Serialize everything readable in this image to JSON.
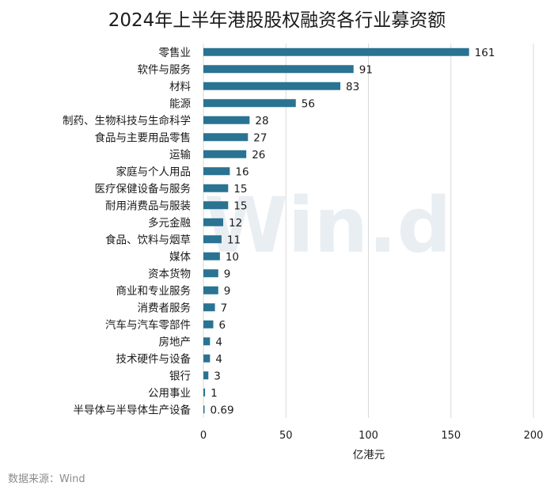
{
  "chart_data": {
    "type": "bar",
    "orientation": "horizontal",
    "title": "2024年上半年港股股权融资各行业募资额",
    "categories": [
      "零售业",
      "软件与服务",
      "材料",
      "能源",
      "制药、生物科技与生命科学",
      "食品与主要用品零售",
      "运输",
      "家庭与个人用品",
      "医疗保健设备与服务",
      "耐用消费品与服装",
      "多元金融",
      "食品、饮料与烟草",
      "媒体",
      "资本货物",
      "商业和专业服务",
      "消费者服务",
      "汽车与汽车零部件",
      "房地产",
      "技术硬件与设备",
      "银行",
      "公用事业",
      "半导体与半导体生产设备"
    ],
    "values": [
      161,
      91,
      83,
      56,
      28,
      27,
      26,
      16,
      15,
      15,
      12,
      11,
      10,
      9,
      9,
      7,
      6,
      4,
      4,
      3,
      1,
      0.69
    ],
    "value_labels": [
      "161",
      "91",
      "83",
      "56",
      "28",
      "27",
      "26",
      "16",
      "15",
      "15",
      "12",
      "11",
      "10",
      "9",
      "9",
      "7",
      "6",
      "4",
      "4",
      "3",
      "1",
      "0.69"
    ],
    "xlabel": "亿港元",
    "ylabel": "",
    "xlim": [
      0,
      200
    ],
    "xticks": [
      0,
      50,
      100,
      150,
      200
    ],
    "xtick_labels": [
      "0",
      "50",
      "100",
      "150",
      "200"
    ],
    "grid": true,
    "bar_color": "#2a7392",
    "grid_color": "#d9d9d9",
    "watermark": "Win.d"
  },
  "source": "数据来源：Wind"
}
